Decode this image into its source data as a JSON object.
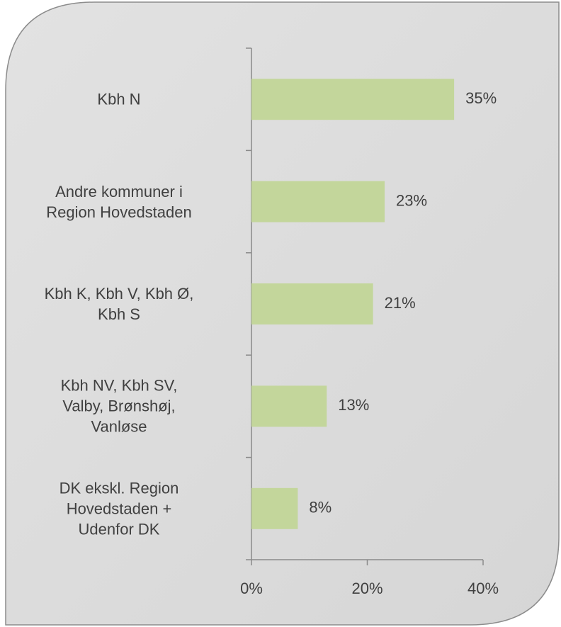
{
  "chart_data": {
    "type": "barh",
    "categories": [
      "Kbh N",
      "Andre kommuner i\nRegion Hovedstaden",
      "Kbh K, Kbh V, Kbh Ø,\nKbh S",
      "Kbh NV, Kbh SV,\nValby, Brønshøj,\nVanløse",
      "DK ekskl. Region\nHovedstaden +\nUdenfor DK"
    ],
    "values": [
      35,
      23,
      21,
      13,
      8
    ],
    "value_labels": [
      "35%",
      "23%",
      "21%",
      "13%",
      "8%"
    ],
    "color": "#c3d69b",
    "xlim": [
      0,
      40
    ],
    "xticks": [
      {
        "value": 0,
        "label": "0%"
      },
      {
        "value": 20,
        "label": "20%"
      },
      {
        "value": 40,
        "label": "40%"
      }
    ]
  }
}
